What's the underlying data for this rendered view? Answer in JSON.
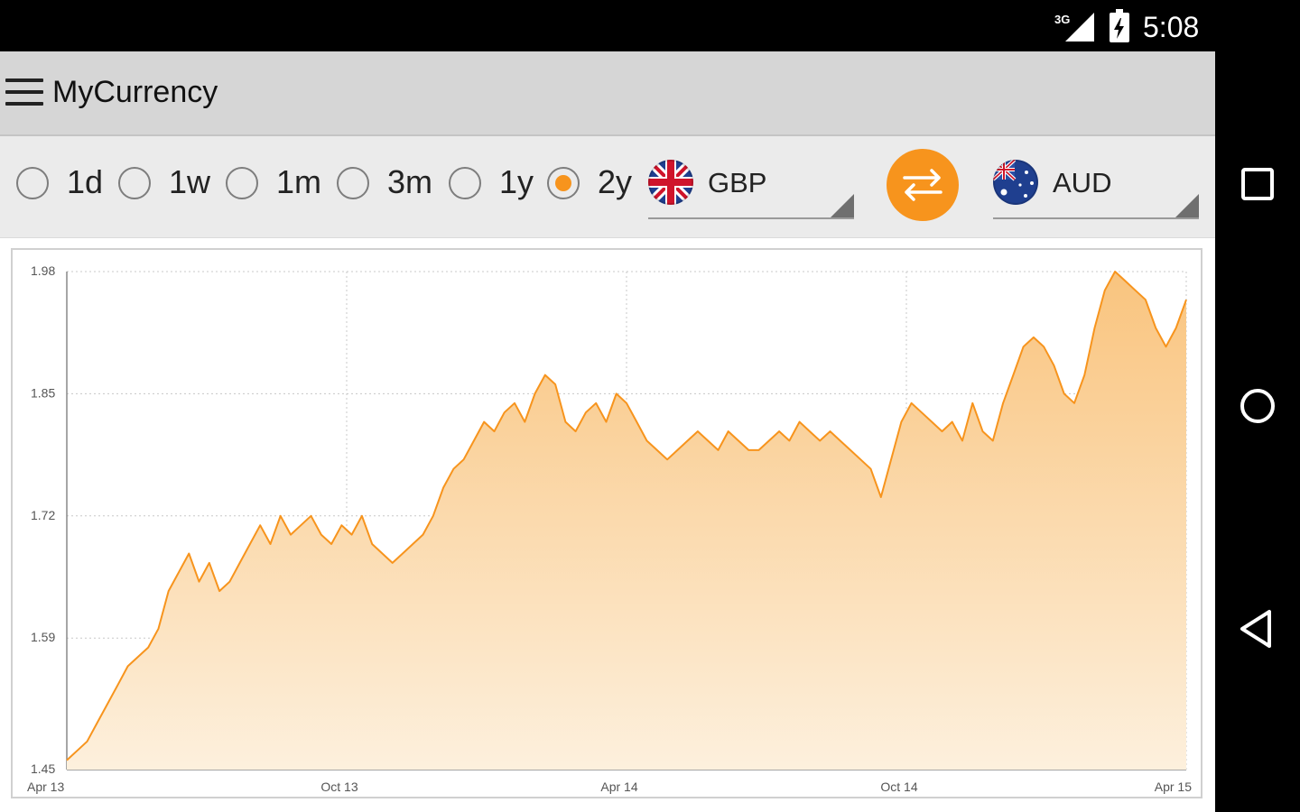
{
  "status_bar": {
    "network": "3G",
    "time": "5:08"
  },
  "toolbar": {
    "title": "MyCurrency"
  },
  "periods": [
    {
      "label": "1d",
      "checked": false
    },
    {
      "label": "1w",
      "checked": false
    },
    {
      "label": "1m",
      "checked": false
    },
    {
      "label": "3m",
      "checked": false
    },
    {
      "label": "1y",
      "checked": false
    },
    {
      "label": "2y",
      "checked": true
    }
  ],
  "from_currency": {
    "code": "GBP",
    "flag": "uk-flag-icon"
  },
  "to_currency": {
    "code": "AUD",
    "flag": "australia-flag-icon"
  },
  "colors": {
    "accent": "#f7941d",
    "fill_top": "#f9c47e",
    "fill_bottom": "#fdf0dd"
  },
  "chart_data": {
    "type": "area",
    "title": "",
    "xlabel": "",
    "ylabel": "",
    "ylim": [
      1.45,
      1.98
    ],
    "y_ticks": [
      "1.98",
      "1.85",
      "1.72",
      "1.59",
      "1.45"
    ],
    "y_tick_values": [
      1.98,
      1.85,
      1.72,
      1.59,
      1.45
    ],
    "x_ticks": [
      "Apr 13",
      "Oct 13",
      "Apr 14",
      "Oct 14",
      "Apr 15"
    ],
    "grid": true,
    "series": [
      {
        "values": [
          1.46,
          1.47,
          1.48,
          1.5,
          1.52,
          1.54,
          1.56,
          1.57,
          1.58,
          1.6,
          1.64,
          1.66,
          1.68,
          1.65,
          1.67,
          1.64,
          1.65,
          1.67,
          1.69,
          1.71,
          1.69,
          1.72,
          1.7,
          1.71,
          1.72,
          1.7,
          1.69,
          1.71,
          1.7,
          1.72,
          1.69,
          1.68,
          1.67,
          1.68,
          1.69,
          1.7,
          1.72,
          1.75,
          1.77,
          1.78,
          1.8,
          1.82,
          1.81,
          1.83,
          1.84,
          1.82,
          1.85,
          1.87,
          1.86,
          1.82,
          1.81,
          1.83,
          1.84,
          1.82,
          1.85,
          1.84,
          1.82,
          1.8,
          1.79,
          1.78,
          1.79,
          1.8,
          1.81,
          1.8,
          1.79,
          1.81,
          1.8,
          1.79,
          1.79,
          1.8,
          1.81,
          1.8,
          1.82,
          1.81,
          1.8,
          1.81,
          1.8,
          1.79,
          1.78,
          1.77,
          1.74,
          1.78,
          1.82,
          1.84,
          1.83,
          1.82,
          1.81,
          1.82,
          1.8,
          1.84,
          1.81,
          1.8,
          1.84,
          1.87,
          1.9,
          1.91,
          1.9,
          1.88,
          1.85,
          1.84,
          1.87,
          1.92,
          1.96,
          1.98,
          1.97,
          1.96,
          1.95,
          1.92,
          1.9,
          1.92,
          1.95
        ]
      }
    ]
  }
}
